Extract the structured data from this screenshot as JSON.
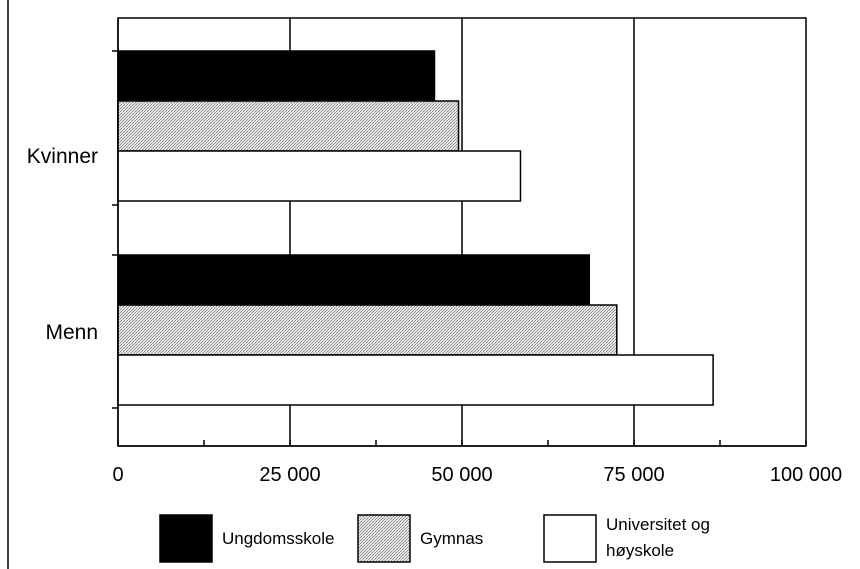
{
  "chart_data": {
    "type": "bar",
    "orientation": "horizontal",
    "title": "",
    "xlabel": "",
    "ylabel": "",
    "categories": [
      "Kvinner",
      "Menn"
    ],
    "series": [
      {
        "name": "Ungdomsskole",
        "values": [
          46000,
          68500
        ],
        "color": "#000000",
        "pattern": "solid"
      },
      {
        "name": "Gymnas",
        "values": [
          49500,
          72500
        ],
        "color": "#c8c8c8",
        "pattern": "stipple"
      },
      {
        "name": "Universitet og høyskole",
        "name_lines": [
          "Universitet og",
          "høyskole"
        ],
        "values": [
          58500,
          86500
        ],
        "color": "#ffffff",
        "pattern": "none"
      }
    ],
    "xlim": [
      0,
      100000
    ],
    "xticks": [
      0,
      25000,
      50000,
      75000,
      100000
    ],
    "xtick_labels": [
      "0",
      "25 000",
      "50 000",
      "75 000",
      "100 000"
    ],
    "grid": "vertical lines at major ticks",
    "legend_position": "bottom"
  }
}
